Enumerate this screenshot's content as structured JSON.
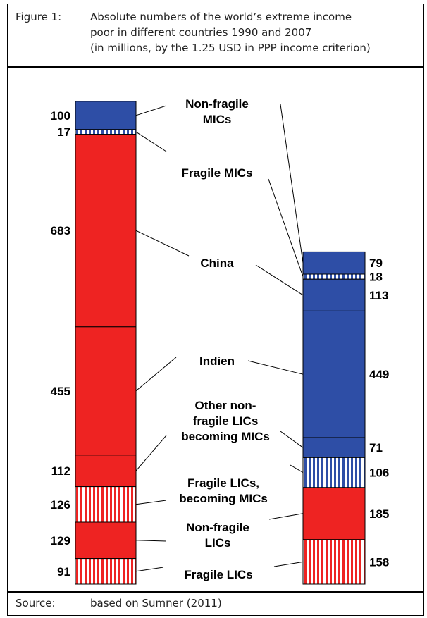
{
  "figure": {
    "label": "Figure 1:",
    "title_lines": [
      "Absolute numbers of the world’s extreme income",
      "poor in different countries 1990 and 2007",
      "(in millions, by the 1.25 USD in PPP income criterion)"
    ]
  },
  "source": {
    "label": "Source:",
    "text": "based on Sumner (2011)"
  },
  "colors": {
    "red": "#ee2322",
    "blue": "#2e4ea6",
    "white": "#ffffff",
    "line": "#000000"
  },
  "chart_data": {
    "type": "stacked-bar",
    "unit": "millions",
    "bars": [
      {
        "name": "1990",
        "segments": [
          {
            "category": "Non-fragile MICs",
            "value": 100,
            "fill": "blue",
            "pattern": "solid"
          },
          {
            "category": "Fragile MICs",
            "value": 17,
            "fill": "blue",
            "pattern": "stripes"
          },
          {
            "category": "China",
            "value": 683,
            "fill": "red",
            "pattern": "solid"
          },
          {
            "category": "Indien",
            "value": 455,
            "fill": "red",
            "pattern": "solid"
          },
          {
            "category": "Other non-fragile LICs becoming MICs",
            "value": 112,
            "fill": "red",
            "pattern": "solid"
          },
          {
            "category": "Fragile LICs, becoming MICs",
            "value": 126,
            "fill": "red",
            "pattern": "stripes"
          },
          {
            "category": "Non-fragile LICs",
            "value": 129,
            "fill": "red",
            "pattern": "solid"
          },
          {
            "category": "Fragile LICs",
            "value": 91,
            "fill": "red",
            "pattern": "stripes"
          }
        ]
      },
      {
        "name": "2007",
        "segments": [
          {
            "category": "Non-fragile MICs",
            "value": 79,
            "fill": "blue",
            "pattern": "solid"
          },
          {
            "category": "Fragile MICs",
            "value": 18,
            "fill": "blue",
            "pattern": "stripes"
          },
          {
            "category": "China",
            "value": 113,
            "fill": "blue",
            "pattern": "solid"
          },
          {
            "category": "Indien",
            "value": 449,
            "fill": "blue",
            "pattern": "solid"
          },
          {
            "category": "Other non-fragile LICs becoming MICs",
            "value": 71,
            "fill": "blue",
            "pattern": "solid"
          },
          {
            "category": "Fragile LICs, becoming MICs",
            "value": 106,
            "fill": "blue",
            "pattern": "stripes"
          },
          {
            "category": "Non-fragile LICs",
            "value": 185,
            "fill": "red",
            "pattern": "solid"
          },
          {
            "category": "Fragile LICs",
            "value": 158,
            "fill": "red",
            "pattern": "stripes"
          }
        ]
      }
    ],
    "legend": [
      {
        "category": "Non-fragile MICs",
        "lines": [
          "Non-fragile",
          "MICs"
        ]
      },
      {
        "category": "Fragile MICs",
        "lines": [
          "Fragile MICs"
        ]
      },
      {
        "category": "China",
        "lines": [
          "China"
        ]
      },
      {
        "category": "Indien",
        "lines": [
          "Indien"
        ]
      },
      {
        "category": "Other non-fragile LICs becoming MICs",
        "lines": [
          "Other non-",
          "fragile LICs",
          "becoming MICs"
        ]
      },
      {
        "category": "Fragile LICs, becoming MICs",
        "lines": [
          "Fragile LICs,",
          "becoming MICs"
        ]
      },
      {
        "category": "Non-fragile LICs",
        "lines": [
          "Non-fragile",
          "LICs"
        ]
      },
      {
        "category": "Fragile LICs",
        "lines": [
          "Fragile LICs"
        ]
      }
    ]
  }
}
